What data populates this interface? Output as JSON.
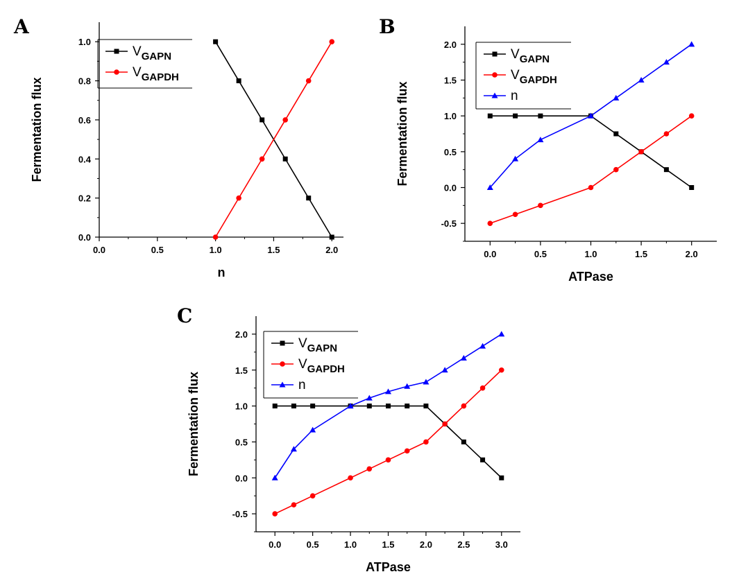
{
  "chart_data": [
    {
      "panel": "A",
      "type": "line",
      "xlabel": "n",
      "ylabel": "Fermentation flux",
      "xlim": [
        0.0,
        2.1
      ],
      "ylim": [
        0.0,
        1.1
      ],
      "xticks": [
        0.0,
        0.5,
        1.0,
        1.5,
        2.0
      ],
      "yticks": [
        0.0,
        0.2,
        0.4,
        0.6,
        0.8,
        1.0
      ],
      "xtick_labels": [
        "0.0",
        "0.5",
        "1.0",
        "1.5",
        "2.0"
      ],
      "ytick_labels": [
        "0.0",
        "0.2",
        "0.4",
        "0.6",
        "0.8",
        "1.0"
      ],
      "legend_position": "top-left",
      "series": [
        {
          "name": "V",
          "sub": "GAPN",
          "color": "#000000",
          "marker": "square",
          "x": [
            1.0,
            1.2,
            1.4,
            1.6,
            1.8,
            2.0
          ],
          "y": [
            1.0,
            0.8,
            0.6,
            0.4,
            0.2,
            0.0
          ]
        },
        {
          "name": "V",
          "sub": "GAPDH",
          "color": "#ff0000",
          "marker": "circle",
          "x": [
            1.0,
            1.2,
            1.4,
            1.6,
            1.8,
            2.0
          ],
          "y": [
            0.0,
            0.2,
            0.4,
            0.6,
            0.8,
            1.0
          ]
        }
      ]
    },
    {
      "panel": "B",
      "type": "line",
      "xlabel": "ATPase",
      "ylabel": "Fermentation flux",
      "xlim": [
        -0.25,
        2.25
      ],
      "ylim": [
        -0.75,
        2.25
      ],
      "xticks": [
        0.0,
        0.5,
        1.0,
        1.5,
        2.0
      ],
      "yticks": [
        -0.5,
        0.0,
        0.5,
        1.0,
        1.5,
        2.0
      ],
      "xtick_labels": [
        "0.0",
        "0.5",
        "1.0",
        "1.5",
        "2.0"
      ],
      "ytick_labels": [
        "-0.5",
        "0.0",
        "0.5",
        "1.0",
        "1.5",
        "2.0"
      ],
      "legend_position": "top-left",
      "series": [
        {
          "name": "V",
          "sub": "GAPN",
          "color": "#000000",
          "marker": "square",
          "x": [
            0,
            0.25,
            0.5,
            1.0,
            1.25,
            1.5,
            1.75,
            2.0
          ],
          "y": [
            1.0,
            1.0,
            1.0,
            1.0,
            0.75,
            0.5,
            0.25,
            0.0
          ]
        },
        {
          "name": "V",
          "sub": "GAPDH",
          "color": "#ff0000",
          "marker": "circle",
          "x": [
            0,
            0.25,
            0.5,
            1.0,
            1.25,
            1.5,
            1.75,
            2.0
          ],
          "y": [
            -0.5,
            -0.375,
            -0.25,
            0.0,
            0.25,
            0.5,
            0.75,
            1.0
          ]
        },
        {
          "name": "n",
          "sub": "",
          "color": "#0000ff",
          "marker": "triangle",
          "x": [
            0,
            0.25,
            0.5,
            1.0,
            1.25,
            1.5,
            1.75,
            2.0
          ],
          "y": [
            0.0,
            0.4,
            0.667,
            1.0,
            1.25,
            1.5,
            1.75,
            2.0
          ]
        }
      ]
    },
    {
      "panel": "C",
      "type": "line",
      "xlabel": "ATPase",
      "ylabel": "Fermentation flux",
      "xlim": [
        -0.25,
        3.25
      ],
      "ylim": [
        -0.75,
        2.25
      ],
      "xticks": [
        0.0,
        0.5,
        1.0,
        1.5,
        2.0,
        2.5,
        3.0
      ],
      "yticks": [
        -0.5,
        0.0,
        0.5,
        1.0,
        1.5,
        2.0
      ],
      "xtick_labels": [
        "0.0",
        "0.5",
        "1.0",
        "1.5",
        "2.0",
        "2.5",
        "3.0"
      ],
      "ytick_labels": [
        "-0.5",
        "0.0",
        "0.5",
        "1.0",
        "1.5",
        "2.0"
      ],
      "legend_position": "top-left",
      "series": [
        {
          "name": "V",
          "sub": "GAPN",
          "color": "#000000",
          "marker": "square",
          "x": [
            0,
            0.25,
            0.5,
            1.0,
            1.25,
            1.5,
            1.75,
            2.0,
            2.25,
            2.5,
            2.75,
            3.0
          ],
          "y": [
            1.0,
            1.0,
            1.0,
            1.0,
            1.0,
            1.0,
            1.0,
            1.0,
            0.75,
            0.5,
            0.25,
            0.0
          ]
        },
        {
          "name": "V",
          "sub": "GAPDH",
          "color": "#ff0000",
          "marker": "circle",
          "x": [
            0,
            0.25,
            0.5,
            1.0,
            1.25,
            1.5,
            1.75,
            2.0,
            2.25,
            2.5,
            2.75,
            3.0
          ],
          "y": [
            -0.5,
            -0.375,
            -0.25,
            0.0,
            0.125,
            0.25,
            0.375,
            0.5,
            0.75,
            1.0,
            1.25,
            1.5
          ]
        },
        {
          "name": "n",
          "sub": "",
          "color": "#0000ff",
          "marker": "triangle",
          "x": [
            0,
            0.25,
            0.5,
            1.0,
            1.25,
            1.5,
            1.75,
            2.0,
            2.25,
            2.5,
            2.75,
            3.0
          ],
          "y": [
            0.0,
            0.4,
            0.667,
            1.0,
            1.111,
            1.2,
            1.273,
            1.333,
            1.5,
            1.667,
            1.833,
            2.0
          ]
        }
      ]
    }
  ]
}
